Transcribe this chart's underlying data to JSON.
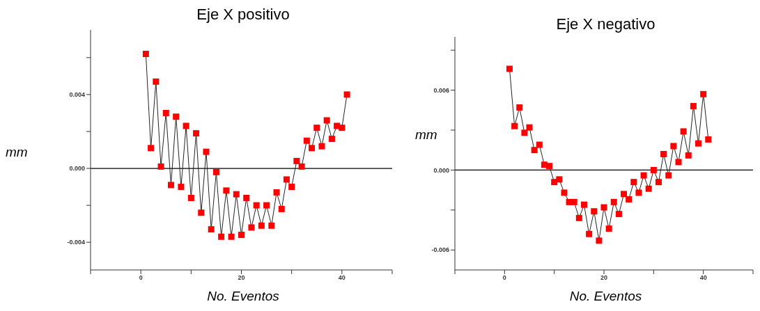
{
  "chart_data": [
    {
      "type": "line",
      "title": "Eje X positivo",
      "xlabel": "No. Eventos",
      "ylabel": "mm",
      "marker": "square",
      "grid": false,
      "legend": false,
      "x": [
        1,
        2,
        3,
        4,
        5,
        6,
        7,
        8,
        9,
        10,
        11,
        12,
        13,
        14,
        15,
        16,
        17,
        18,
        19,
        20,
        21,
        22,
        23,
        24,
        25,
        26,
        27,
        28,
        29,
        30,
        31,
        32,
        33,
        34,
        35,
        36,
        37,
        38,
        39,
        40,
        41
      ],
      "series": [
        {
          "color": "#ff0000",
          "values": [
            0.0062,
            0.0011,
            0.0047,
            0.0001,
            0.003,
            -0.0009,
            0.0028,
            -0.001,
            0.0023,
            -0.0016,
            0.0019,
            -0.0024,
            0.0009,
            -0.0033,
            -0.0002,
            -0.0037,
            -0.0012,
            -0.0037,
            -0.0014,
            -0.0036,
            -0.0016,
            -0.0032,
            -0.002,
            -0.0031,
            -0.002,
            -0.0031,
            -0.0013,
            -0.0022,
            -0.0006,
            -0.001,
            0.0004,
            0.0001,
            0.0015,
            0.0011,
            0.0022,
            0.0012,
            0.0026,
            0.0016,
            0.0023,
            0.0022,
            0.004
          ]
        }
      ],
      "xlim": [
        -10,
        50
      ],
      "xticks": [
        {
          "value": -10,
          "label": null
        },
        0,
        {
          "value": 10,
          "label": null
        },
        20,
        {
          "value": 30,
          "label": null
        },
        40,
        {
          "value": 50,
          "label": null
        }
      ],
      "ylim": [
        -0.0055,
        0.0075
      ],
      "yticks": [
        {
          "value": -0.004,
          "label": "-0.004"
        },
        {
          "value": -0.002,
          "label": null
        },
        {
          "value": 0,
          "label": "0.000"
        },
        {
          "value": 0.002,
          "label": null
        },
        {
          "value": 0.004,
          "label": "0.004"
        },
        {
          "value": 0.006,
          "label": null
        }
      ],
      "ref_lines": [
        {
          "axis": "y",
          "value": 0,
          "color": "#000000"
        }
      ]
    },
    {
      "type": "line",
      "title": "Eje X negativo",
      "xlabel": "No. Eventos",
      "ylabel": "mm",
      "marker": "square",
      "grid": false,
      "legend": false,
      "x": [
        1,
        2,
        3,
        4,
        5,
        6,
        7,
        8,
        9,
        10,
        11,
        12,
        13,
        14,
        15,
        16,
        17,
        18,
        19,
        20,
        21,
        22,
        23,
        24,
        25,
        26,
        27,
        28,
        29,
        30,
        31,
        32,
        33,
        34,
        35,
        36,
        37,
        38,
        39,
        40,
        41
      ],
      "series": [
        {
          "color": "#ff0000",
          "values": [
            0.0076,
            0.0033,
            0.0047,
            0.0028,
            0.0032,
            0.0015,
            0.0019,
            0.0004,
            0.0003,
            -0.0009,
            -0.0007,
            -0.0017,
            -0.0024,
            -0.0024,
            -0.0036,
            -0.0026,
            -0.0048,
            -0.0031,
            -0.0053,
            -0.0028,
            -0.0044,
            -0.0024,
            -0.0033,
            -0.0018,
            -0.0022,
            -0.0009,
            -0.0017,
            -0.0004,
            -0.0014,
            0.0,
            -0.0009,
            0.0012,
            -0.0004,
            0.0018,
            0.0006,
            0.0029,
            0.0011,
            0.0048,
            0.002,
            0.0057,
            0.0023
          ]
        }
      ],
      "xlim": [
        -10,
        50
      ],
      "xticks": [
        {
          "value": -10,
          "label": null
        },
        0,
        {
          "value": 10,
          "label": null
        },
        20,
        {
          "value": 30,
          "label": null
        },
        40,
        {
          "value": 50,
          "label": null
        }
      ],
      "ylim": [
        -0.0075,
        0.01
      ],
      "yticks": [
        {
          "value": -0.006,
          "label": "-0.006"
        },
        {
          "value": -0.003,
          "label": null
        },
        {
          "value": 0,
          "label": "0.000"
        },
        {
          "value": 0.003,
          "label": null
        },
        {
          "value": 0.006,
          "label": "0.006"
        },
        {
          "value": 0.009,
          "label": null
        }
      ],
      "ref_lines": [
        {
          "axis": "y",
          "value": 0,
          "color": "#000000"
        }
      ]
    }
  ]
}
